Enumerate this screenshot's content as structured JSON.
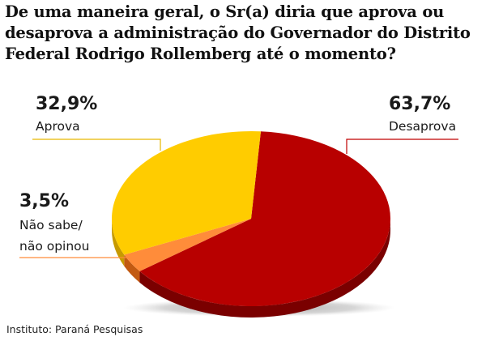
{
  "title": "De uma maneira geral, o Sr(a) diria que aprova ou desaprova a administração do Governador do Distrito Federal Rodrigo Rollemberg até o momento?",
  "source": "Instituto: Paraná Pesquisas",
  "chart_data": {
    "type": "pie",
    "title": "De uma maneira geral, o Sr(a) diria que aprova ou desaprova a administração do Governador do Distrito Federal Rodrigo Rollemberg até o momento?",
    "slices": [
      {
        "label": "Desaprova",
        "value": 63.7,
        "value_label": "63,7%",
        "color": "#b80000",
        "shadow": "#7a0000"
      },
      {
        "label": "Não sabe/ não opinou",
        "value": 3.5,
        "value_label": "3,5%",
        "color": "#ff8c3a",
        "shadow": "#c25a12"
      },
      {
        "label": "Aprova",
        "value": 32.9,
        "value_label": "32,9%",
        "color": "#ffcc00",
        "shadow": "#c79a00"
      }
    ],
    "legend": "none"
  },
  "labels": {
    "aprova_pct": "32,9%",
    "aprova": "Aprova",
    "desaprova_pct": "63,7%",
    "desaprova": "Desaprova",
    "nao_sabe_pct": "3,5%",
    "nao_sabe_line1": "Não sabe/",
    "nao_sabe_line2": "não opinou"
  },
  "colors": {
    "desaprova": "#b80000",
    "aprova": "#ffcc00",
    "nao_sabe": "#ff8c3a",
    "leader_red": "#c00000",
    "leader_yellow": "#e6b800"
  }
}
